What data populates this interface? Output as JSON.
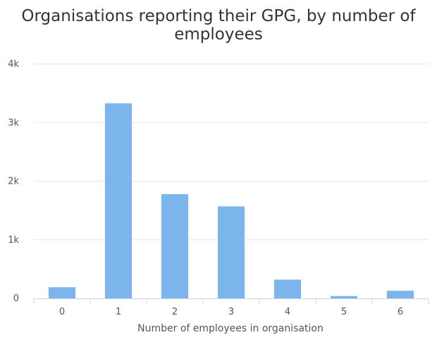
{
  "chart_data": {
    "type": "bar",
    "title_lines": [
      "Organisations reporting their GPG, by number of",
      "employees"
    ],
    "xlabel": "Number of employees in organisation",
    "ylabel": "",
    "categories": [
      "0",
      "1",
      "2",
      "3",
      "4",
      "5",
      "6"
    ],
    "values": [
      190,
      3330,
      1780,
      1570,
      320,
      40,
      130
    ],
    "ylim": [
      0,
      4000
    ],
    "yticks": [
      {
        "value": 0,
        "label": "0"
      },
      {
        "value": 1000,
        "label": "1k"
      },
      {
        "value": 2000,
        "label": "2k"
      },
      {
        "value": 3000,
        "label": "3k"
      },
      {
        "value": 4000,
        "label": "4k"
      }
    ],
    "grid": true,
    "legend": "none",
    "colors": {
      "bar": "#7cb5ec",
      "grid": "#e6e6e6",
      "axis": "#ccd6eb"
    }
  }
}
